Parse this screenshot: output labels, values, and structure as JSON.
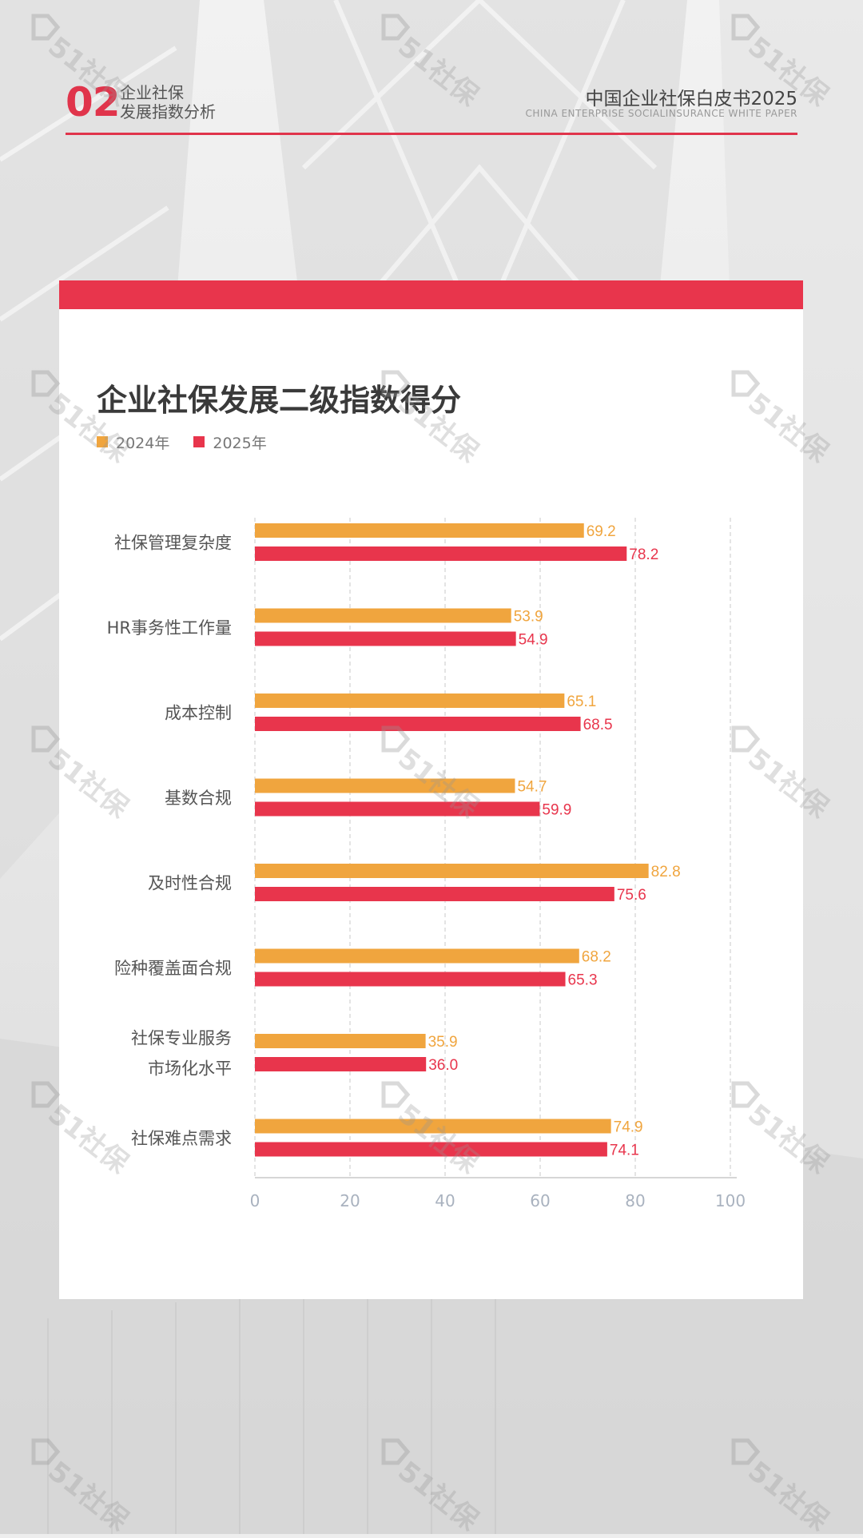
{
  "header": {
    "section_number": "02",
    "section_line1": "企业社保",
    "section_line2": "发展指数分析",
    "report_title": "中国企业社保白皮书2025",
    "report_subtitle": "CHINA ENTERPRISE SOCIALINSURANCE WHITE PAPER"
  },
  "watermark": {
    "text": "51社保"
  },
  "colors": {
    "accent": "#e0344b",
    "series_2024": "#f0a53e",
    "series_2025": "#e8354c"
  },
  "chart_data": {
    "type": "bar",
    "orientation": "horizontal",
    "title": "企业社保发展二级指数得分",
    "categories": [
      [
        "社保管理复杂度"
      ],
      [
        "HR事务性工作量"
      ],
      [
        "成本控制"
      ],
      [
        "基数合规"
      ],
      [
        "及时性合规"
      ],
      [
        "险种覆盖面合规"
      ],
      [
        "社保专业服务",
        "市场化水平"
      ],
      [
        "社保难点需求"
      ]
    ],
    "series": [
      {
        "name": "2024年",
        "color": "#f0a53e",
        "values": [
          69.2,
          53.9,
          65.1,
          54.7,
          82.8,
          68.2,
          35.9,
          74.9
        ]
      },
      {
        "name": "2025年",
        "color": "#e8354c",
        "values": [
          78.2,
          54.9,
          68.5,
          59.9,
          75.6,
          65.3,
          36.0,
          74.1
        ]
      }
    ],
    "xlim": [
      0,
      100
    ],
    "xticks": [
      0,
      20,
      40,
      60,
      80,
      100
    ],
    "grid": true,
    "legend_position": "top-left"
  }
}
